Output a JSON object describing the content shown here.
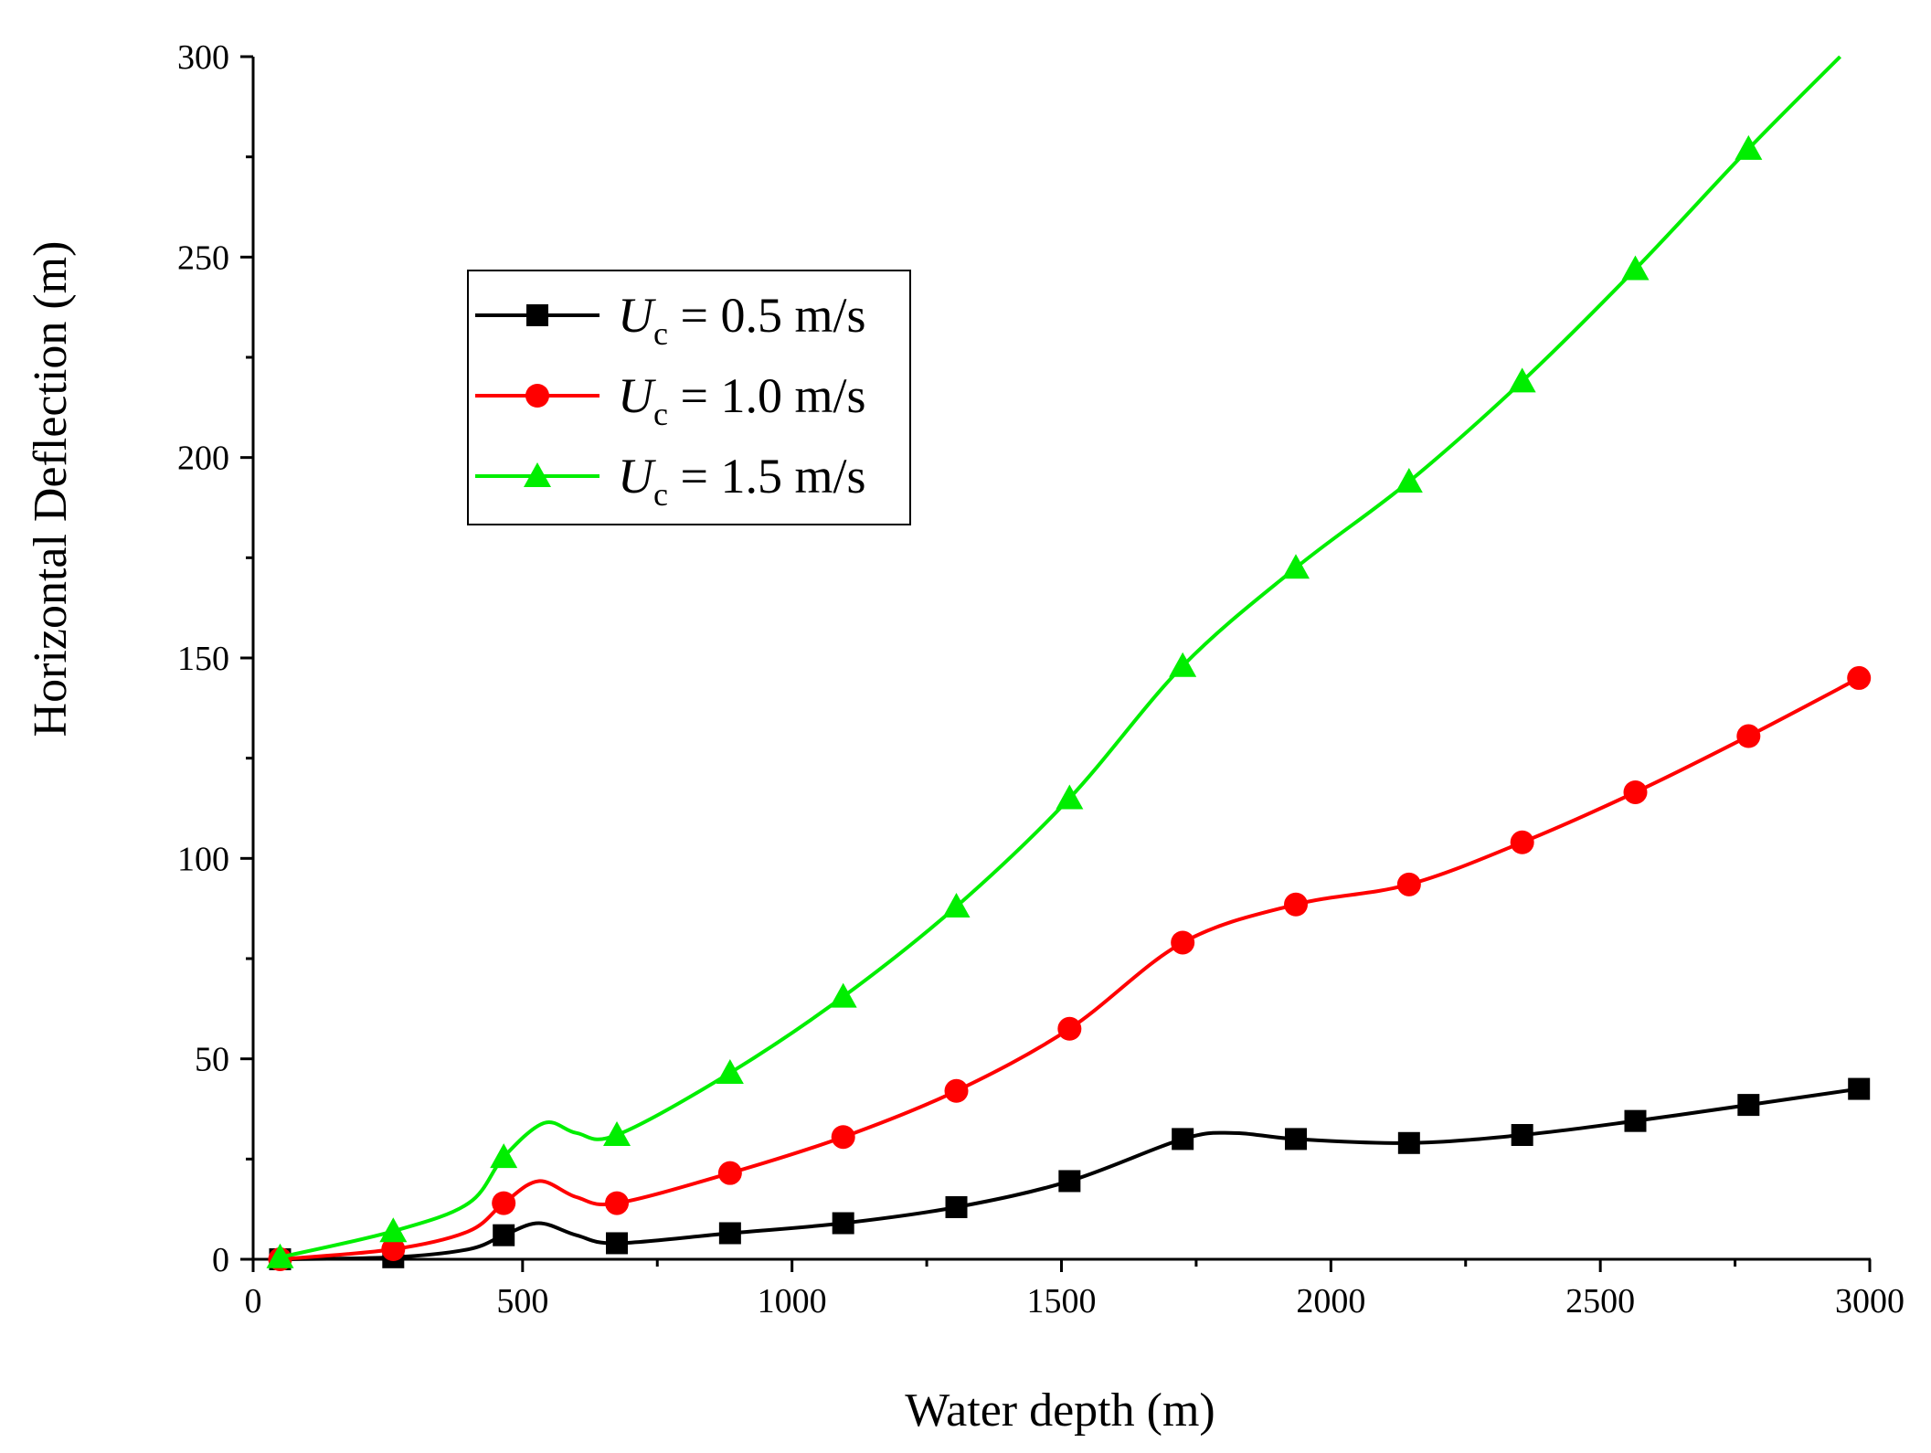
{
  "chart_data": {
    "type": "line",
    "title": "",
    "xlabel": "Water depth (m)",
    "ylabel": "Horizontal Deflection (m)",
    "xlim": [
      0,
      3000
    ],
    "ylim": [
      0,
      300
    ],
    "xticks": [
      0,
      500,
      1000,
      1500,
      2000,
      2500,
      3000
    ],
    "yticks": [
      0,
      50,
      100,
      150,
      200,
      250,
      300
    ],
    "xtick_labels": [
      "0",
      "500",
      "1000",
      "1500",
      "2000",
      "2500",
      "3000"
    ],
    "ytick_labels": [
      "0",
      "50",
      "100",
      "150",
      "200",
      "250",
      "300"
    ],
    "grid": false,
    "legend_position": "upper-left",
    "series": [
      {
        "name": "U_c = 0.5 m/s",
        "legend_var": "U",
        "legend_sub": "c",
        "legend_rest": " = 0.5 m/s",
        "color": "#000000",
        "marker": "square",
        "x": [
          50,
          260,
          465,
          675,
          885,
          1095,
          1305,
          1515,
          1725,
          1935,
          2145,
          2355,
          2565,
          2775,
          2980
        ],
        "values": [
          0,
          0.5,
          6,
          4,
          6.5,
          9,
          13,
          19.5,
          30,
          30,
          29,
          31,
          34.5,
          38.5,
          42.5
        ],
        "curve_x": [
          50,
          260,
          400,
          465,
          530,
          600,
          675,
          885,
          1095,
          1305,
          1515,
          1725,
          1820,
          1935,
          2145,
          2355,
          2565,
          2775,
          2980
        ],
        "curve_y": [
          0,
          0.5,
          2.5,
          6,
          9,
          6,
          4,
          6.5,
          9,
          13,
          19.5,
          30,
          31.5,
          30,
          29,
          31,
          34.5,
          38.5,
          42.5
        ]
      },
      {
        "name": "U_c = 1.0 m/s",
        "legend_var": "U",
        "legend_sub": "c",
        "legend_rest": " = 1.0 m/s",
        "color": "#ff0000",
        "marker": "circle",
        "x": [
          50,
          260,
          465,
          675,
          885,
          1095,
          1305,
          1515,
          1725,
          1935,
          2145,
          2355,
          2565,
          2775,
          2980
        ],
        "values": [
          0,
          2.5,
          14,
          14,
          21.5,
          30.5,
          42,
          57.5,
          79,
          88.5,
          93.5,
          104,
          116.5,
          130.5,
          145
        ],
        "curve_x": [
          50,
          260,
          400,
          465,
          530,
          600,
          675,
          885,
          1095,
          1305,
          1515,
          1725,
          1935,
          2145,
          2355,
          2565,
          2775,
          2980
        ],
        "curve_y": [
          0,
          2.5,
          7,
          14,
          19.5,
          15.5,
          14,
          21.5,
          30.5,
          42,
          57.5,
          79,
          88.5,
          93.5,
          104,
          116.5,
          130.5,
          145
        ]
      },
      {
        "name": "U_c = 1.5 m/s",
        "legend_var": "U",
        "legend_sub": "c",
        "legend_rest": " = 1.5 m/s",
        "color": "#00ee00",
        "marker": "triangle",
        "x": [
          50,
          260,
          465,
          675,
          885,
          1095,
          1305,
          1515,
          1725,
          1935,
          2145,
          2355,
          2565,
          2775
        ],
        "values": [
          0.5,
          7,
          25.5,
          31,
          46.5,
          65.5,
          88,
          115,
          148,
          172.5,
          194,
          219,
          247,
          277
        ],
        "curve_x": [
          50,
          260,
          400,
          465,
          540,
          600,
          675,
          885,
          1095,
          1305,
          1515,
          1725,
          1935,
          2145,
          2355,
          2565,
          2775,
          2945
        ],
        "curve_y": [
          0.5,
          7,
          14,
          25.5,
          34,
          31.5,
          31,
          46.5,
          65.5,
          88,
          115,
          148,
          172.5,
          194,
          219,
          247,
          277,
          300
        ]
      }
    ]
  }
}
